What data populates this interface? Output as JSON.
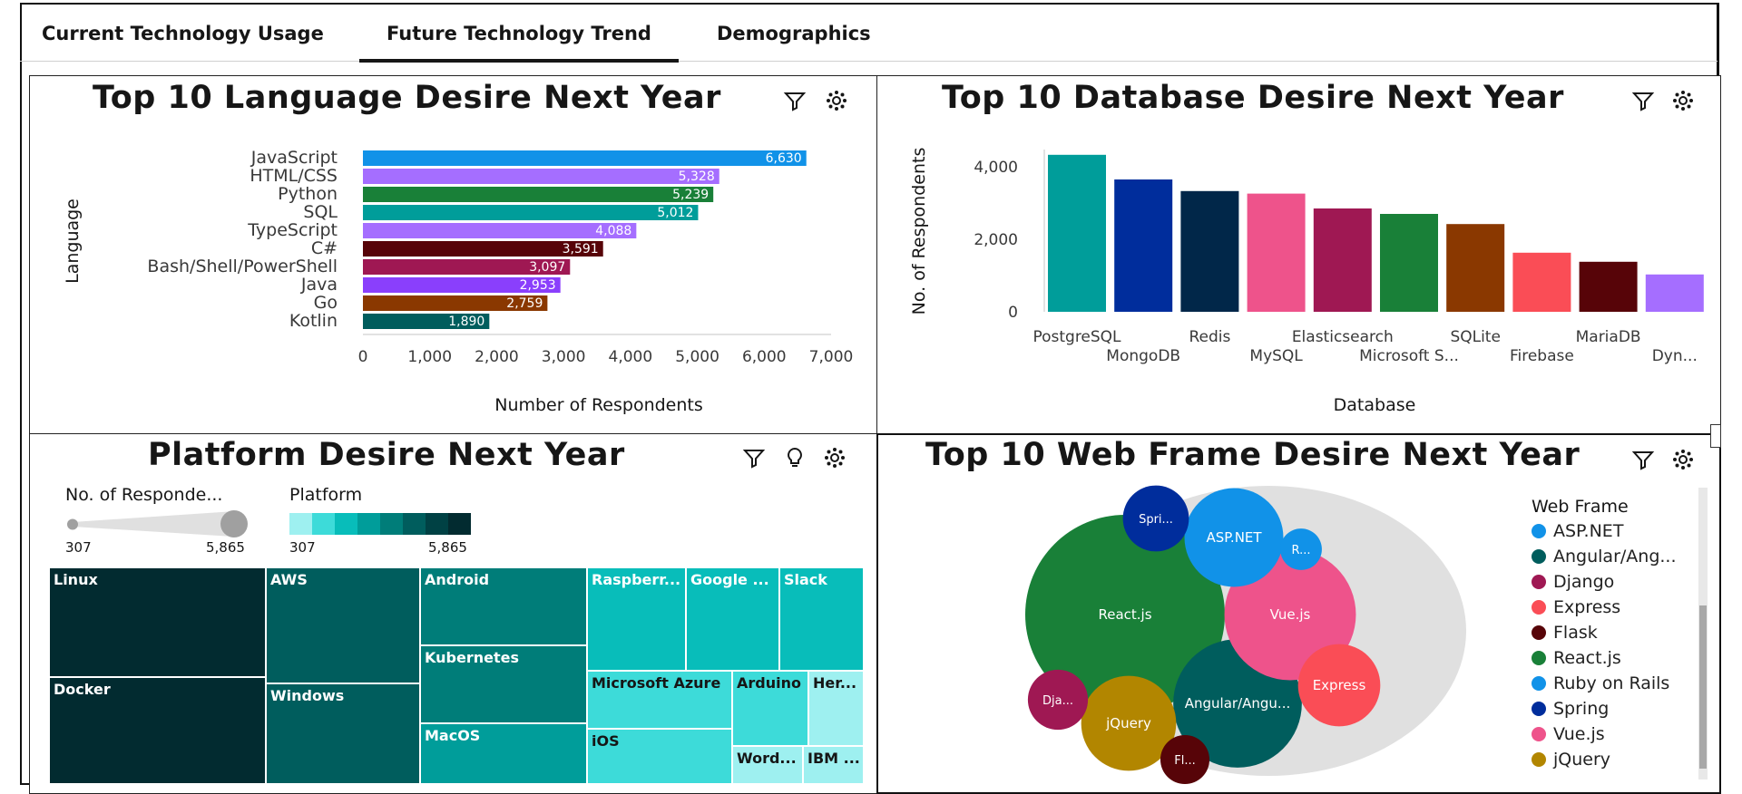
{
  "tabs": [
    {
      "label": "Current Technology Usage",
      "active": false
    },
    {
      "label": "Future Technology Trend",
      "active": true
    },
    {
      "label": "Demographics",
      "active": false
    }
  ],
  "language_panel": {
    "title": "Top 10 Language Desire Next Year",
    "icons": [
      "filter-icon",
      "settings-icon"
    ]
  },
  "database_panel": {
    "title": "Top 10 Database Desire Next Year",
    "icons": [
      "filter-icon",
      "settings-icon"
    ]
  },
  "platform_panel": {
    "title": "Platform Desire Next Year",
    "icons": [
      "filter-icon",
      "lightbulb-icon",
      "settings-icon"
    ],
    "size_legend": {
      "title": "No. of Responde...",
      "min": "307",
      "max": "5,865"
    },
    "color_legend": {
      "title": "Platform",
      "min": "307",
      "max": "5,865",
      "colors": [
        "#9ef0f0",
        "#3ddbd9",
        "#08bdba",
        "#009d9a",
        "#007d79",
        "#005d5d",
        "#004144",
        "#022b30"
      ]
    }
  },
  "webframe_panel": {
    "title": "Top 10 Web Frame Desire Next Year",
    "icons": [
      "filter-icon",
      "settings-icon"
    ],
    "legend_title": "Web Frame",
    "legend_items": [
      {
        "label": "ASP.NET",
        "color": "#1192e8"
      },
      {
        "label": "Angular/Ang...",
        "color": "#005d5d"
      },
      {
        "label": "Django",
        "color": "#9f1853"
      },
      {
        "label": "Express",
        "color": "#fa4d56"
      },
      {
        "label": "Flask",
        "color": "#570408"
      },
      {
        "label": "React.js",
        "color": "#198038"
      },
      {
        "label": "Ruby on Rails",
        "color": "#1192e8"
      },
      {
        "label": "Spring",
        "color": "#002d9c"
      },
      {
        "label": "Vue.js",
        "color": "#ee538b"
      },
      {
        "label": "jQuery",
        "color": "#b28600"
      }
    ]
  },
  "chart_data": [
    {
      "type": "bar",
      "orientation": "horizontal",
      "title": "Top 10 Language Desire Next Year",
      "xlabel": "Number of Respondents",
      "ylabel": "Language",
      "xlim": [
        0,
        7000
      ],
      "xticks": [
        "0",
        "1,000",
        "2,000",
        "3,000",
        "4,000",
        "5,000",
        "6,000",
        "7,000"
      ],
      "categories": [
        "JavaScript",
        "HTML/CSS",
        "Python",
        "SQL",
        "TypeScript",
        "C#",
        "Bash/Shell/PowerShell",
        "Java",
        "Go",
        "Kotlin"
      ],
      "values": [
        6630,
        5328,
        5239,
        5012,
        4088,
        3591,
        3097,
        2953,
        2759,
        1890
      ],
      "value_labels": [
        "6,630",
        "5,328",
        "5,239",
        "5,012",
        "4,088",
        "3,591",
        "3,097",
        "2,953",
        "2,759",
        "1,890"
      ],
      "colors": [
        "#1192e8",
        "#a56eff",
        "#198038",
        "#009d9a",
        "#a56eff",
        "#570408",
        "#9f1853",
        "#8a3ffc",
        "#8a3800",
        "#005d5d"
      ]
    },
    {
      "type": "bar",
      "title": "Top 10 Database Desire Next Year",
      "xlabel": "Database",
      "ylabel": "No. of Respondents",
      "ylim": [
        0,
        4600
      ],
      "yticks": [
        "0",
        "2,000",
        "4,000"
      ],
      "categories": [
        "PostgreSQL",
        "MongoDB",
        "Redis",
        "MySQL",
        "Elasticsearch",
        "Microsoft S...",
        "SQLite",
        "Firebase",
        "MariaDB",
        "Dyn..."
      ],
      "values": [
        4330,
        3650,
        3330,
        3260,
        2850,
        2700,
        2420,
        1630,
        1380,
        1030
      ],
      "colors": [
        "#009d9a",
        "#002d9c",
        "#012749",
        "#ee538b",
        "#9f1853",
        "#198038",
        "#8a3800",
        "#fa4d56",
        "#570408",
        "#a56eff"
      ]
    },
    {
      "type": "treemap",
      "title": "Platform Desire Next Year",
      "size_measure": "No. of Responde...",
      "color_measure": "Platform",
      "range": [
        307,
        5865
      ],
      "items": [
        {
          "label": "Linux",
          "value": 5865
        },
        {
          "label": "Docker",
          "value": 5650
        },
        {
          "label": "AWS",
          "value": 4230
        },
        {
          "label": "Windows",
          "value": 4080
        },
        {
          "label": "Android",
          "value": 3200
        },
        {
          "label": "Kubernetes",
          "value": 3100
        },
        {
          "label": "MacOS",
          "value": 2600
        },
        {
          "label": "Raspberr...",
          "value": 1900
        },
        {
          "label": "Google ...",
          "value": 1700
        },
        {
          "label": "Slack",
          "value": 1650
        },
        {
          "label": "Microsoft Azure",
          "value": 1200
        },
        {
          "label": "iOS",
          "value": 1050
        },
        {
          "label": "Arduino",
          "value": 900
        },
        {
          "label": "Her...",
          "value": 500
        },
        {
          "label": "Word...",
          "value": 450
        },
        {
          "label": "IBM ...",
          "value": 307
        }
      ]
    },
    {
      "type": "packed-bubble",
      "title": "Top 10 Web Frame Desire Next Year",
      "legend_title": "Web Frame",
      "items": [
        {
          "label": "React.js",
          "value": 5300
        },
        {
          "label": "Angular/Angu...",
          "value": 2200
        },
        {
          "label": "Vue.js",
          "value": 2300
        },
        {
          "label": "ASP.NET",
          "value": 1300
        },
        {
          "label": "jQuery",
          "value": 1200
        },
        {
          "label": "Express",
          "value": 900
        },
        {
          "label": "Spri...",
          "value": 580
        },
        {
          "label": "Dja...",
          "value": 480
        },
        {
          "label": "Fl...",
          "value": 320
        },
        {
          "label": "R...",
          "value": 230
        }
      ]
    }
  ]
}
